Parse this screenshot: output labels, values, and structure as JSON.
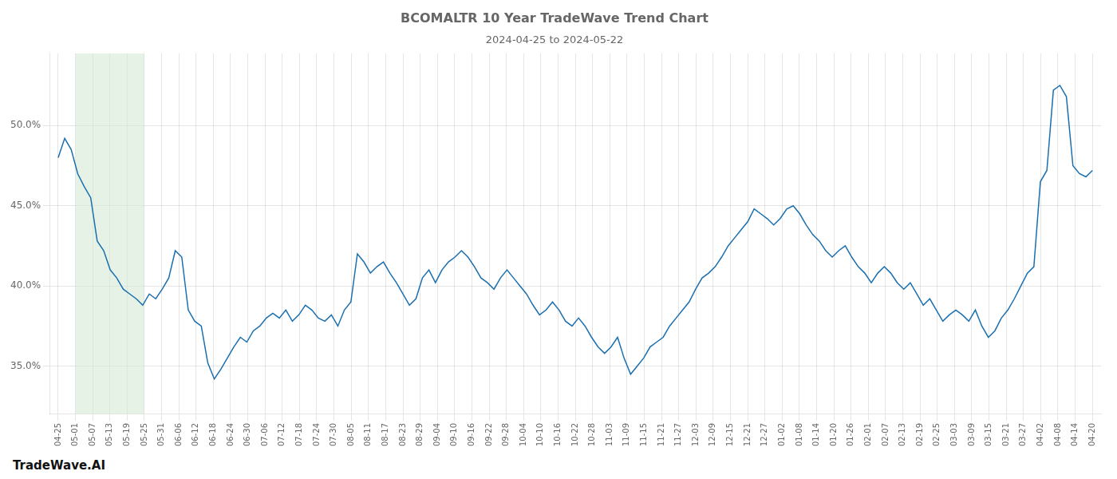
{
  "chart_data": {
    "type": "line",
    "title": "BCOMALTR 10 Year TradeWave Trend Chart",
    "subtitle": "2024-04-25 to 2024-05-22",
    "annotations": [
      "TradeWave.AI"
    ],
    "color": "#1a6faf",
    "grid": true,
    "shade": {
      "from": 1,
      "to": 5,
      "color": "#d4ead4"
    },
    "xlim": [
      -0.5,
      60.5
    ],
    "xticks": [
      {
        "value": 0,
        "label": "04-25"
      },
      {
        "value": 1,
        "label": "05-01"
      },
      {
        "value": 2,
        "label": "05-07"
      },
      {
        "value": 3,
        "label": "05-13"
      },
      {
        "value": 4,
        "label": "05-19"
      },
      {
        "value": 5,
        "label": "05-25"
      },
      {
        "value": 6,
        "label": "05-31"
      },
      {
        "value": 7,
        "label": "06-06"
      },
      {
        "value": 8,
        "label": "06-12"
      },
      {
        "value": 9,
        "label": "06-18"
      },
      {
        "value": 10,
        "label": "06-24"
      },
      {
        "value": 11,
        "label": "06-30"
      },
      {
        "value": 12,
        "label": "07-06"
      },
      {
        "value": 13,
        "label": "07-12"
      },
      {
        "value": 14,
        "label": "07-18"
      },
      {
        "value": 15,
        "label": "07-24"
      },
      {
        "value": 16,
        "label": "07-30"
      },
      {
        "value": 17,
        "label": "08-05"
      },
      {
        "value": 18,
        "label": "08-11"
      },
      {
        "value": 19,
        "label": "08-17"
      },
      {
        "value": 20,
        "label": "08-23"
      },
      {
        "value": 21,
        "label": "08-29"
      },
      {
        "value": 22,
        "label": "09-04"
      },
      {
        "value": 23,
        "label": "09-10"
      },
      {
        "value": 24,
        "label": "09-16"
      },
      {
        "value": 25,
        "label": "09-22"
      },
      {
        "value": 26,
        "label": "09-28"
      },
      {
        "value": 27,
        "label": "10-04"
      },
      {
        "value": 28,
        "label": "10-10"
      },
      {
        "value": 29,
        "label": "10-16"
      },
      {
        "value": 30,
        "label": "10-22"
      },
      {
        "value": 31,
        "label": "10-28"
      },
      {
        "value": 32,
        "label": "11-03"
      },
      {
        "value": 33,
        "label": "11-09"
      },
      {
        "value": 34,
        "label": "11-15"
      },
      {
        "value": 35,
        "label": "11-21"
      },
      {
        "value": 36,
        "label": "11-27"
      },
      {
        "value": 37,
        "label": "12-03"
      },
      {
        "value": 38,
        "label": "12-09"
      },
      {
        "value": 39,
        "label": "12-15"
      },
      {
        "value": 40,
        "label": "12-21"
      },
      {
        "value": 41,
        "label": "12-27"
      },
      {
        "value": 42,
        "label": "01-02"
      },
      {
        "value": 43,
        "label": "01-08"
      },
      {
        "value": 44,
        "label": "01-14"
      },
      {
        "value": 45,
        "label": "01-20"
      },
      {
        "value": 46,
        "label": "01-26"
      },
      {
        "value": 47,
        "label": "02-01"
      },
      {
        "value": 48,
        "label": "02-07"
      },
      {
        "value": 49,
        "label": "02-13"
      },
      {
        "value": 50,
        "label": "02-19"
      },
      {
        "value": 51,
        "label": "02-25"
      },
      {
        "value": 52,
        "label": "03-03"
      },
      {
        "value": 53,
        "label": "03-09"
      },
      {
        "value": 54,
        "label": "03-15"
      },
      {
        "value": 55,
        "label": "03-21"
      },
      {
        "value": 56,
        "label": "03-27"
      },
      {
        "value": 57,
        "label": "04-02"
      },
      {
        "value": 58,
        "label": "04-08"
      },
      {
        "value": 59,
        "label": "04-14"
      },
      {
        "value": 60,
        "label": "04-20"
      }
    ],
    "ylim": [
      32.0,
      54.5
    ],
    "yticks": [
      {
        "value": 35.0,
        "label": "35.0%"
      },
      {
        "value": 40.0,
        "label": "40.0%"
      },
      {
        "value": 45.0,
        "label": "45.0%"
      },
      {
        "value": 50.0,
        "label": "50.0%"
      }
    ],
    "values": [
      48.0,
      49.2,
      48.5,
      47.0,
      46.2,
      45.5,
      42.8,
      42.2,
      41.0,
      40.5,
      39.8,
      39.5,
      39.2,
      38.8,
      39.5,
      39.2,
      39.8,
      40.5,
      42.2,
      41.8,
      38.5,
      37.8,
      37.5,
      35.2,
      34.2,
      34.8,
      35.5,
      36.2,
      36.8,
      36.5,
      37.2,
      37.5,
      38.0,
      38.3,
      38.0,
      38.5,
      37.8,
      38.2,
      38.8,
      38.5,
      38.0,
      37.8,
      38.2,
      37.5,
      38.5,
      39.0,
      42.0,
      41.5,
      40.8,
      41.2,
      41.5,
      40.8,
      40.2,
      39.5,
      38.8,
      39.2,
      40.5,
      41.0,
      40.2,
      41.0,
      41.5,
      41.8,
      42.2,
      41.8,
      41.2,
      40.5,
      40.2,
      39.8,
      40.5,
      41.0,
      40.5,
      40.0,
      39.5,
      38.8,
      38.2,
      38.5,
      39.0,
      38.5,
      37.8,
      37.5,
      38.0,
      37.5,
      36.8,
      36.2,
      35.8,
      36.2,
      36.8,
      35.5,
      34.5,
      35.0,
      35.5,
      36.2,
      36.5,
      36.8,
      37.5,
      38.0,
      38.5,
      39.0,
      39.8,
      40.5,
      40.8,
      41.2,
      41.8,
      42.5,
      43.0,
      43.5,
      44.0,
      44.8,
      44.5,
      44.2,
      43.8,
      44.2,
      44.8,
      45.0,
      44.5,
      43.8,
      43.2,
      42.8,
      42.2,
      41.8,
      42.2,
      42.5,
      41.8,
      41.2,
      40.8,
      40.2,
      40.8,
      41.2,
      40.8,
      40.2,
      39.8,
      40.2,
      39.5,
      38.8,
      39.2,
      38.5,
      37.8,
      38.2,
      38.5,
      38.2,
      37.8,
      38.5,
      37.5,
      36.8,
      37.2,
      38.0,
      38.5,
      39.2,
      40.0,
      40.8,
      41.2,
      46.5,
      47.2,
      52.2,
      52.5,
      51.8,
      47.5,
      47.0,
      46.8,
      47.2
    ]
  }
}
